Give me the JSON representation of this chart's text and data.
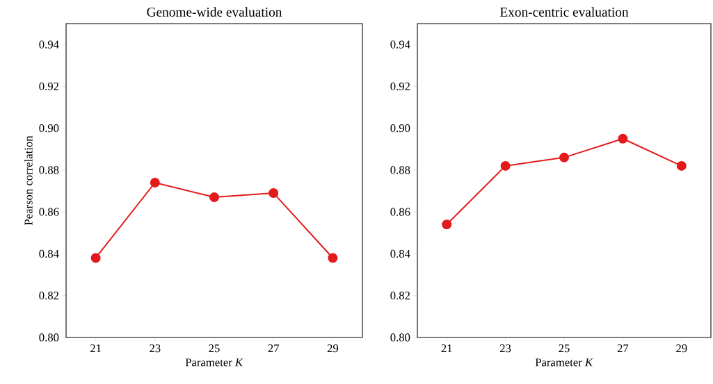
{
  "chart_data": [
    {
      "type": "line",
      "title": "Genome-wide evaluation",
      "xlabel": "Parameter *K*",
      "ylabel": "Pearson correlation",
      "x": [
        21,
        23,
        25,
        27,
        29
      ],
      "values": [
        0.838,
        0.874,
        0.867,
        0.869,
        0.838
      ],
      "color": "#e31a1c",
      "marker": "circle",
      "xlim": [
        20,
        30
      ],
      "ylim": [
        0.8,
        0.95
      ],
      "xticks": [
        21,
        23,
        25,
        27,
        29
      ],
      "yticks": [
        {
          "value": 0.8,
          "label": "0.80"
        },
        {
          "value": 0.82,
          "label": "0.82"
        },
        {
          "value": 0.84,
          "label": "0.84"
        },
        {
          "value": 0.86,
          "label": "0.86"
        },
        {
          "value": 0.88,
          "label": "0.88"
        },
        {
          "value": 0.9,
          "label": "0.90"
        },
        {
          "value": 0.92,
          "label": "0.92"
        },
        {
          "value": 0.94,
          "label": "0.94"
        }
      ]
    },
    {
      "type": "line",
      "title": "Exon-centric evaluation",
      "xlabel": "Parameter *K*",
      "x": [
        21,
        23,
        25,
        27,
        29
      ],
      "values": [
        0.854,
        0.882,
        0.886,
        0.895,
        0.882
      ],
      "color": "#e31a1c",
      "marker": "circle",
      "xlim": [
        20,
        30
      ],
      "ylim": [
        0.8,
        0.95
      ],
      "xticks": [
        21,
        23,
        25,
        27,
        29
      ],
      "yticks": [
        {
          "value": 0.8,
          "label": "0.80"
        },
        {
          "value": 0.82,
          "label": "0.82"
        },
        {
          "value": 0.84,
          "label": "0.84"
        },
        {
          "value": 0.86,
          "label": "0.86"
        },
        {
          "value": 0.88,
          "label": "0.88"
        },
        {
          "value": 0.9,
          "label": "0.90"
        },
        {
          "value": 0.92,
          "label": "0.92"
        },
        {
          "value": 0.94,
          "label": "0.94"
        }
      ]
    }
  ]
}
